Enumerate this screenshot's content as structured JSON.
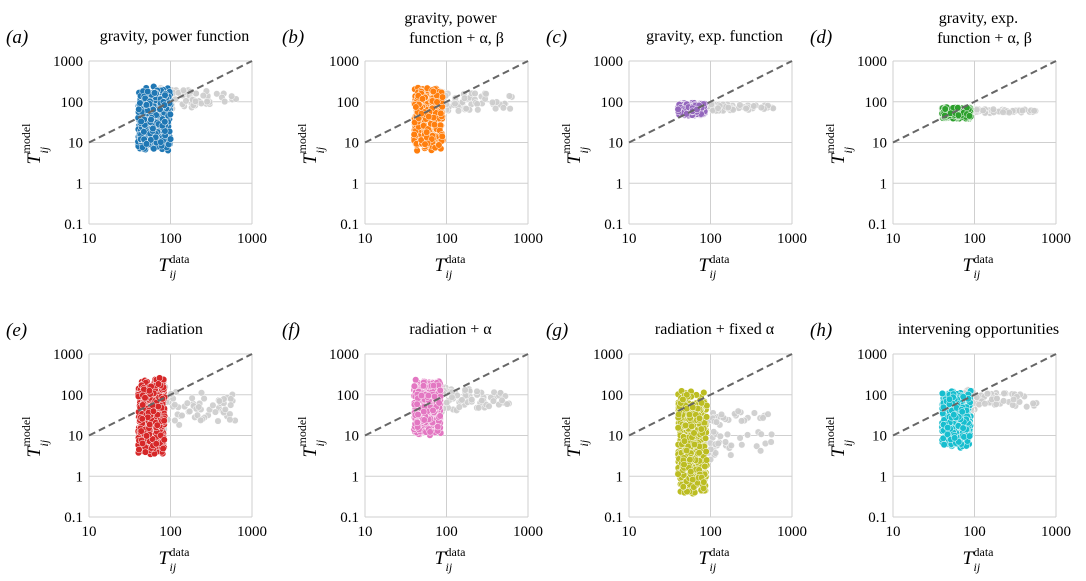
{
  "chart_data": [
    {
      "type": "scatter",
      "letter": "(a)",
      "title": [
        "gravity, power function"
      ],
      "xlabel": {
        "main": "T",
        "sup": "data",
        "sub": "ij"
      },
      "ylabel": {
        "main": "T",
        "sup": "model",
        "sub": "ij"
      },
      "xscale": "log",
      "yscale": "log",
      "xlim": [
        10,
        1000
      ],
      "ylim": [
        0.1,
        1000
      ],
      "xticks": [
        "10",
        "100",
        "1000"
      ],
      "yticks": [
        "0.1",
        "1",
        "10",
        "100",
        "1000"
      ],
      "grid": true,
      "reference_line": "y = x",
      "colored_points": {
        "color": "#1f77b4",
        "x_range": [
          40,
          100
        ],
        "y_range": [
          6,
          250
        ]
      },
      "gray_points": {
        "color": "#cccccc",
        "x_range": [
          75,
          650
        ],
        "y_range": [
          55,
          250
        ]
      }
    },
    {
      "type": "scatter",
      "letter": "(b)",
      "title": [
        "gravity, power",
        "function + α, β"
      ],
      "xlabel": {
        "main": "T",
        "sup": "data",
        "sub": "ij"
      },
      "ylabel": {
        "main": "T",
        "sup": "model",
        "sub": "ij"
      },
      "xscale": "log",
      "yscale": "log",
      "xlim": [
        10,
        1000
      ],
      "ylim": [
        0.1,
        1000
      ],
      "xticks": [
        "10",
        "100",
        "1000"
      ],
      "yticks": [
        "0.1",
        "1",
        "10",
        "100",
        "1000"
      ],
      "grid": true,
      "reference_line": "y = x",
      "colored_points": {
        "color": "#ff7f0e",
        "x_range": [
          40,
          90
        ],
        "y_range": [
          6,
          250
        ]
      },
      "gray_points": {
        "color": "#cccccc",
        "x_range": [
          70,
          650
        ],
        "y_range": [
          45,
          230
        ]
      }
    },
    {
      "type": "scatter",
      "letter": "(c)",
      "title": [
        "gravity, exp. function"
      ],
      "xlabel": {
        "main": "T",
        "sup": "data",
        "sub": "ij"
      },
      "ylabel": {
        "main": "T",
        "sup": "model",
        "sub": "ij"
      },
      "xscale": "log",
      "yscale": "log",
      "xlim": [
        10,
        1000
      ],
      "ylim": [
        0.1,
        1000
      ],
      "xticks": [
        "10",
        "100",
        "1000"
      ],
      "yticks": [
        "0.1",
        "1",
        "10",
        "100",
        "1000"
      ],
      "grid": true,
      "reference_line": "y = x",
      "colored_points": {
        "color": "#9467bd",
        "x_range": [
          40,
          85
        ],
        "y_range": [
          45,
          95
        ]
      },
      "gray_points": {
        "color": "#cccccc",
        "x_range": [
          70,
          650
        ],
        "y_range": [
          55,
          95
        ]
      }
    },
    {
      "type": "scatter",
      "letter": "(d)",
      "title": [
        "gravity, exp.",
        "function + α, β"
      ],
      "xlabel": {
        "main": "T",
        "sup": "data",
        "sub": "ij"
      },
      "ylabel": {
        "main": "T",
        "sup": "model",
        "sub": "ij"
      },
      "xscale": "log",
      "yscale": "log",
      "xlim": [
        10,
        1000
      ],
      "ylim": [
        0.1,
        1000
      ],
      "xticks": [
        "10",
        "100",
        "1000"
      ],
      "yticks": [
        "0.1",
        "1",
        "10",
        "100",
        "1000"
      ],
      "grid": true,
      "reference_line": "y = x",
      "colored_points": {
        "color": "#2ca02c",
        "x_range": [
          40,
          90
        ],
        "y_range": [
          38,
          75
        ]
      },
      "gray_points": {
        "color": "#cccccc",
        "x_range": [
          75,
          650
        ],
        "y_range": [
          50,
          70
        ]
      }
    },
    {
      "type": "scatter",
      "letter": "(e)",
      "title": [
        "radiation"
      ],
      "xlabel": {
        "main": "T",
        "sup": "data",
        "sub": "ij"
      },
      "ylabel": {
        "main": "T",
        "sup": "model",
        "sub": "ij"
      },
      "xscale": "log",
      "yscale": "log",
      "xlim": [
        10,
        1000
      ],
      "ylim": [
        0.1,
        1000
      ],
      "xticks": [
        "10",
        "100",
        "1000"
      ],
      "yticks": [
        "0.1",
        "1",
        "10",
        "100",
        "1000"
      ],
      "grid": true,
      "reference_line": "y = x",
      "colored_points": {
        "color": "#d62728",
        "x_range": [
          40,
          85
        ],
        "y_range": [
          3,
          300
        ]
      },
      "gray_points": {
        "color": "#cccccc",
        "x_range": [
          70,
          650
        ],
        "y_range": [
          10,
          220
        ]
      }
    },
    {
      "type": "scatter",
      "letter": "(f)",
      "title": [
        "radiation + α"
      ],
      "xlabel": {
        "main": "T",
        "sup": "data",
        "sub": "ij"
      },
      "ylabel": {
        "main": "T",
        "sup": "model",
        "sub": "ij"
      },
      "xscale": "log",
      "yscale": "log",
      "xlim": [
        10,
        1000
      ],
      "ylim": [
        0.1,
        1000
      ],
      "xticks": [
        "10",
        "100",
        "1000"
      ],
      "yticks": [
        "0.1",
        "1",
        "10",
        "100",
        "1000"
      ],
      "grid": true,
      "reference_line": "y = x",
      "colored_points": {
        "color": "#e377c2",
        "x_range": [
          40,
          85
        ],
        "y_range": [
          10,
          250
        ]
      },
      "gray_points": {
        "color": "#cccccc",
        "x_range": [
          70,
          650
        ],
        "y_range": [
          30,
          210
        ]
      }
    },
    {
      "type": "scatter",
      "letter": "(g)",
      "title": [
        "radiation + fixed α"
      ],
      "xlabel": {
        "main": "T",
        "sup": "data",
        "sub": "ij"
      },
      "ylabel": {
        "main": "T",
        "sup": "model",
        "sub": "ij"
      },
      "xscale": "log",
      "yscale": "log",
      "xlim": [
        10,
        1000
      ],
      "ylim": [
        0.1,
        1000
      ],
      "xticks": [
        "10",
        "100",
        "1000"
      ],
      "yticks": [
        "0.1",
        "1",
        "10",
        "100",
        "1000"
      ],
      "grid": true,
      "reference_line": "y = x",
      "colored_points": {
        "color": "#bcbd22",
        "x_range": [
          40,
          90
        ],
        "y_range": [
          0.3,
          150
        ]
      },
      "gray_points": {
        "color": "#cccccc",
        "x_range": [
          75,
          650
        ],
        "y_range": [
          1.5,
          90
        ]
      }
    },
    {
      "type": "scatter",
      "letter": "(h)",
      "title": [
        "intervening opportunities"
      ],
      "xlabel": {
        "main": "T",
        "sup": "data",
        "sub": "ij"
      },
      "ylabel": {
        "main": "T",
        "sup": "model",
        "sub": "ij"
      },
      "xscale": "log",
      "yscale": "log",
      "xlim": [
        10,
        1000
      ],
      "ylim": [
        0.1,
        1000
      ],
      "xticks": [
        "10",
        "100",
        "1000"
      ],
      "yticks": [
        "0.1",
        "1",
        "10",
        "100",
        "1000"
      ],
      "grid": true,
      "reference_line": "y = x",
      "colored_points": {
        "color": "#17becf",
        "x_range": [
          40,
          90
        ],
        "y_range": [
          5,
          140
        ]
      },
      "gray_points": {
        "color": "#cccccc",
        "x_range": [
          75,
          650
        ],
        "y_range": [
          35,
          150
        ]
      }
    }
  ]
}
